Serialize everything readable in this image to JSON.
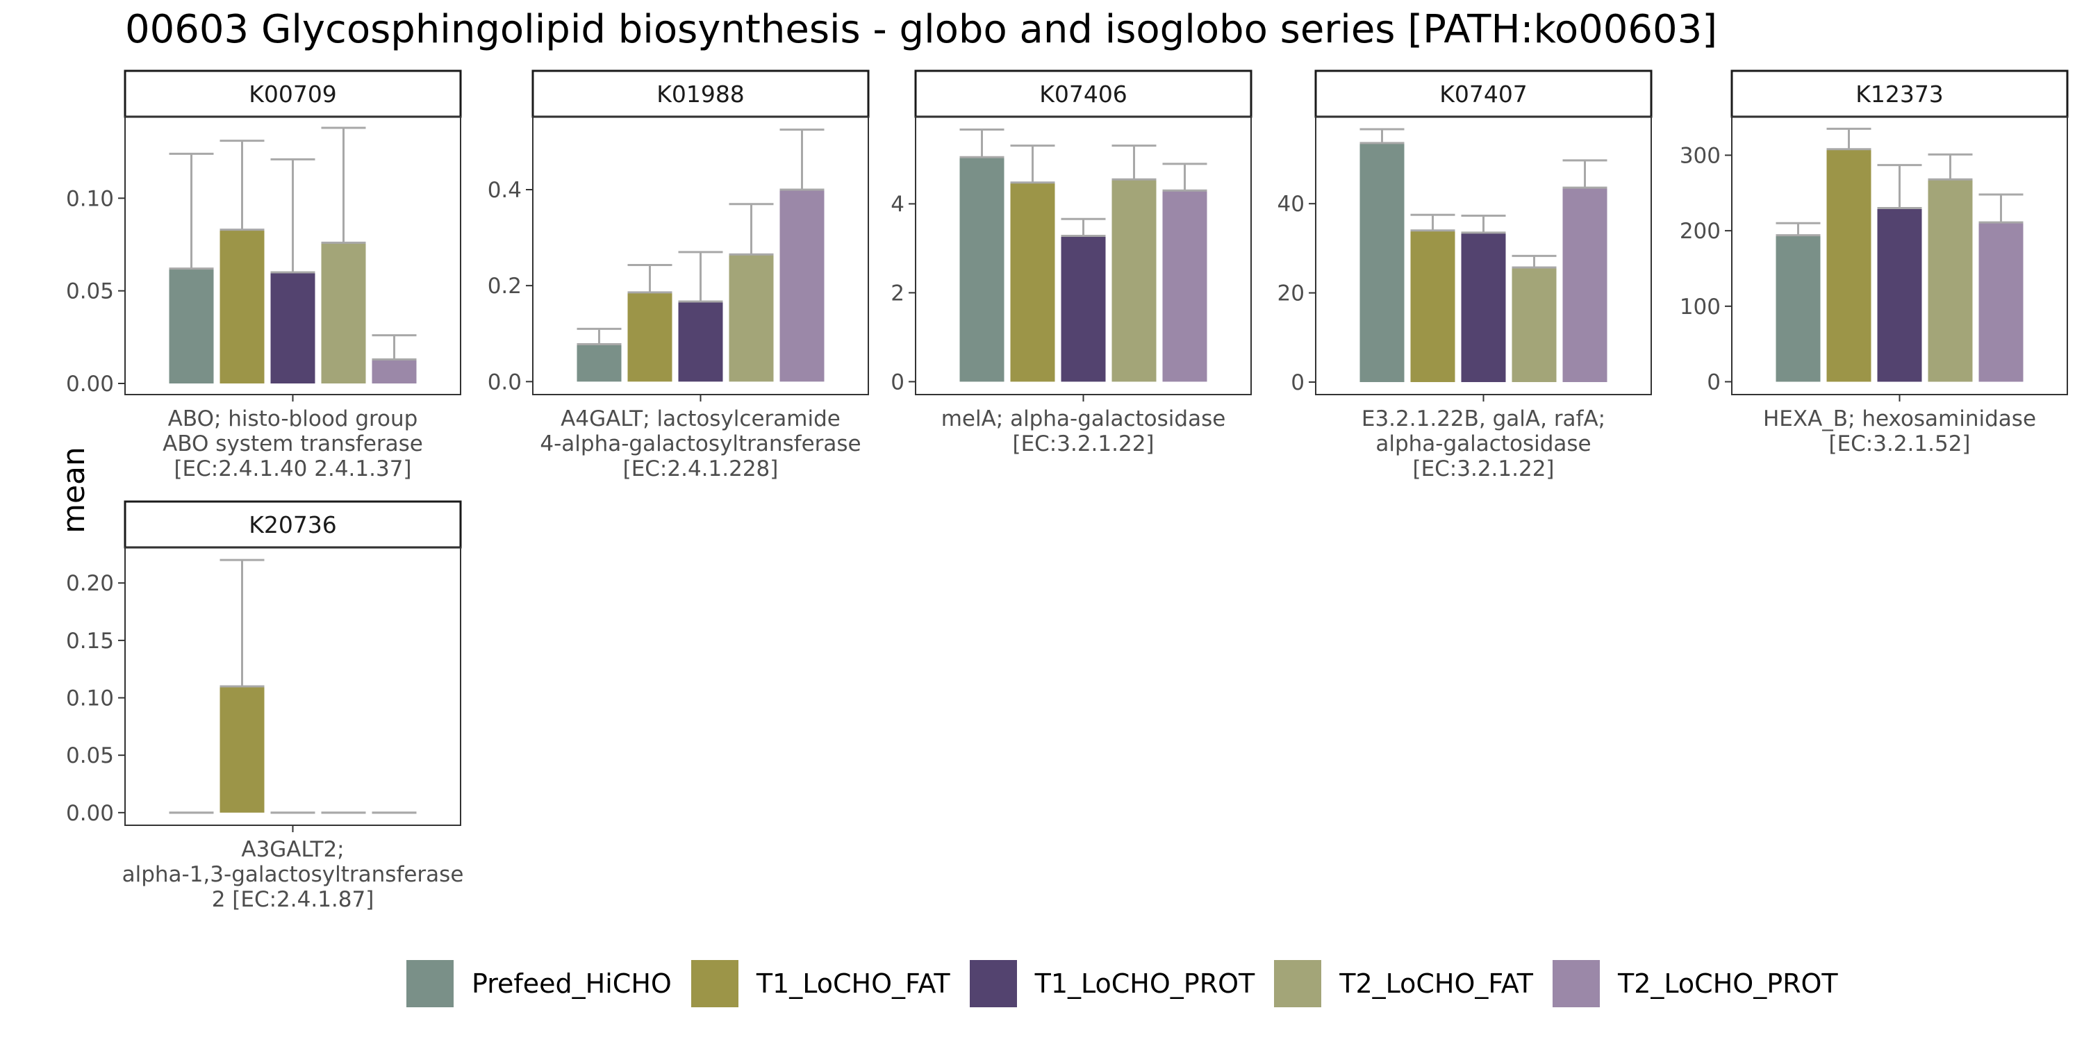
{
  "title": "00603 Glycosphingolipid biosynthesis - globo and isoglobo series [PATH:ko00603]",
  "ylabel": "mean",
  "legend": [
    {
      "name": "Prefeed_HiCHO",
      "color": "#7a9088"
    },
    {
      "name": "T1_LoCHO_FAT",
      "color": "#9c9548"
    },
    {
      "name": "T1_LoCHO_PROT",
      "color": "#53436f"
    },
    {
      "name": "T2_LoCHO_FAT",
      "color": "#a3a578"
    },
    {
      "name": "T2_LoCHO_PROT",
      "color": "#9b88a8"
    }
  ],
  "chart_data": [
    {
      "type": "bar",
      "panel": "K00709",
      "xlabel": [
        "ABO; histo-blood group",
        "ABO system transferase",
        "[EC:2.4.1.40 2.4.1.37]"
      ],
      "categories": [
        "Prefeed_HiCHO",
        "T1_LoCHO_FAT",
        "T1_LoCHO_PROT",
        "T2_LoCHO_FAT",
        "T2_LoCHO_PROT"
      ],
      "values": [
        0.062,
        0.083,
        0.06,
        0.076,
        0.013
      ],
      "error_upper": [
        0.124,
        0.131,
        0.121,
        0.138,
        0.026
      ],
      "yticks": [
        0.0,
        0.05,
        0.1
      ],
      "ytick_labels": [
        "0.00",
        "0.05",
        "0.10"
      ],
      "ylim": [
        -0.006,
        0.144
      ]
    },
    {
      "type": "bar",
      "panel": "K01988",
      "xlabel": [
        "A4GALT; lactosylceramide",
        "4-alpha-galactosyltransferase",
        "[EC:2.4.1.228]"
      ],
      "categories": [
        "Prefeed_HiCHO",
        "T1_LoCHO_FAT",
        "T1_LoCHO_PROT",
        "T2_LoCHO_FAT",
        "T2_LoCHO_PROT"
      ],
      "values": [
        0.078,
        0.186,
        0.167,
        0.265,
        0.4
      ],
      "error_upper": [
        0.11,
        0.243,
        0.27,
        0.37,
        0.525
      ],
      "yticks": [
        0.0,
        0.2,
        0.4
      ],
      "ytick_labels": [
        "0.0",
        "0.2",
        "0.4"
      ],
      "ylim": [
        -0.027,
        0.552
      ]
    },
    {
      "type": "bar",
      "panel": "K07406",
      "xlabel": [
        "melA; alpha-galactosidase",
        "[EC:3.2.1.22]"
      ],
      "categories": [
        "Prefeed_HiCHO",
        "T1_LoCHO_FAT",
        "T1_LoCHO_PROT",
        "T2_LoCHO_FAT",
        "T2_LoCHO_PROT"
      ],
      "values": [
        5.05,
        4.48,
        3.28,
        4.55,
        4.3
      ],
      "error_upper": [
        5.67,
        5.31,
        3.66,
        5.31,
        4.9
      ],
      "yticks": [
        0,
        2,
        4
      ],
      "ytick_labels": [
        "0",
        "2",
        "4"
      ],
      "ylim": [
        -0.29,
        5.96
      ]
    },
    {
      "type": "bar",
      "panel": "K07407",
      "xlabel": [
        "E3.2.1.22B, galA, rafA;",
        "alpha-galactosidase",
        "[EC:3.2.1.22]"
      ],
      "categories": [
        "Prefeed_HiCHO",
        "T1_LoCHO_FAT",
        "T1_LoCHO_PROT",
        "T2_LoCHO_FAT",
        "T2_LoCHO_PROT"
      ],
      "values": [
        53.6,
        34.0,
        33.5,
        25.7,
        43.6
      ],
      "error_upper": [
        56.7,
        37.5,
        37.3,
        28.3,
        49.7
      ],
      "yticks": [
        0,
        20,
        40
      ],
      "ytick_labels": [
        "0",
        "20",
        "40"
      ],
      "ylim": [
        -2.8,
        59.5
      ]
    },
    {
      "type": "bar",
      "panel": "K12373",
      "xlabel": [
        "HEXA_B; hexosaminidase",
        "[EC:3.2.1.52]"
      ],
      "categories": [
        "Prefeed_HiCHO",
        "T1_LoCHO_FAT",
        "T1_LoCHO_PROT",
        "T2_LoCHO_FAT",
        "T2_LoCHO_PROT"
      ],
      "values": [
        194,
        308,
        230,
        268,
        211
      ],
      "error_upper": [
        210,
        335,
        287,
        301,
        248
      ],
      "yticks": [
        0,
        100,
        200,
        300
      ],
      "ytick_labels": [
        "0",
        "100",
        "200",
        "300"
      ],
      "ylim": [
        -17,
        351
      ]
    },
    {
      "type": "bar",
      "panel": "K20736",
      "xlabel": [
        "A3GALT2;",
        "alpha-1,3-galactosyltransferase",
        "2 [EC:2.4.1.87]"
      ],
      "categories": [
        "Prefeed_HiCHO",
        "T1_LoCHO_FAT",
        "T1_LoCHO_PROT",
        "T2_LoCHO_FAT",
        "T2_LoCHO_PROT"
      ],
      "values": [
        0.0,
        0.11,
        0.0,
        0.0,
        0.0
      ],
      "error_upper": [
        0.0,
        0.22,
        0.0,
        0.0,
        0.0
      ],
      "yticks": [
        0.0,
        0.05,
        0.1,
        0.15,
        0.2
      ],
      "ytick_labels": [
        "0.00",
        "0.05",
        "0.10",
        "0.15",
        "0.20"
      ],
      "ylim": [
        -0.011,
        0.231
      ]
    }
  ]
}
